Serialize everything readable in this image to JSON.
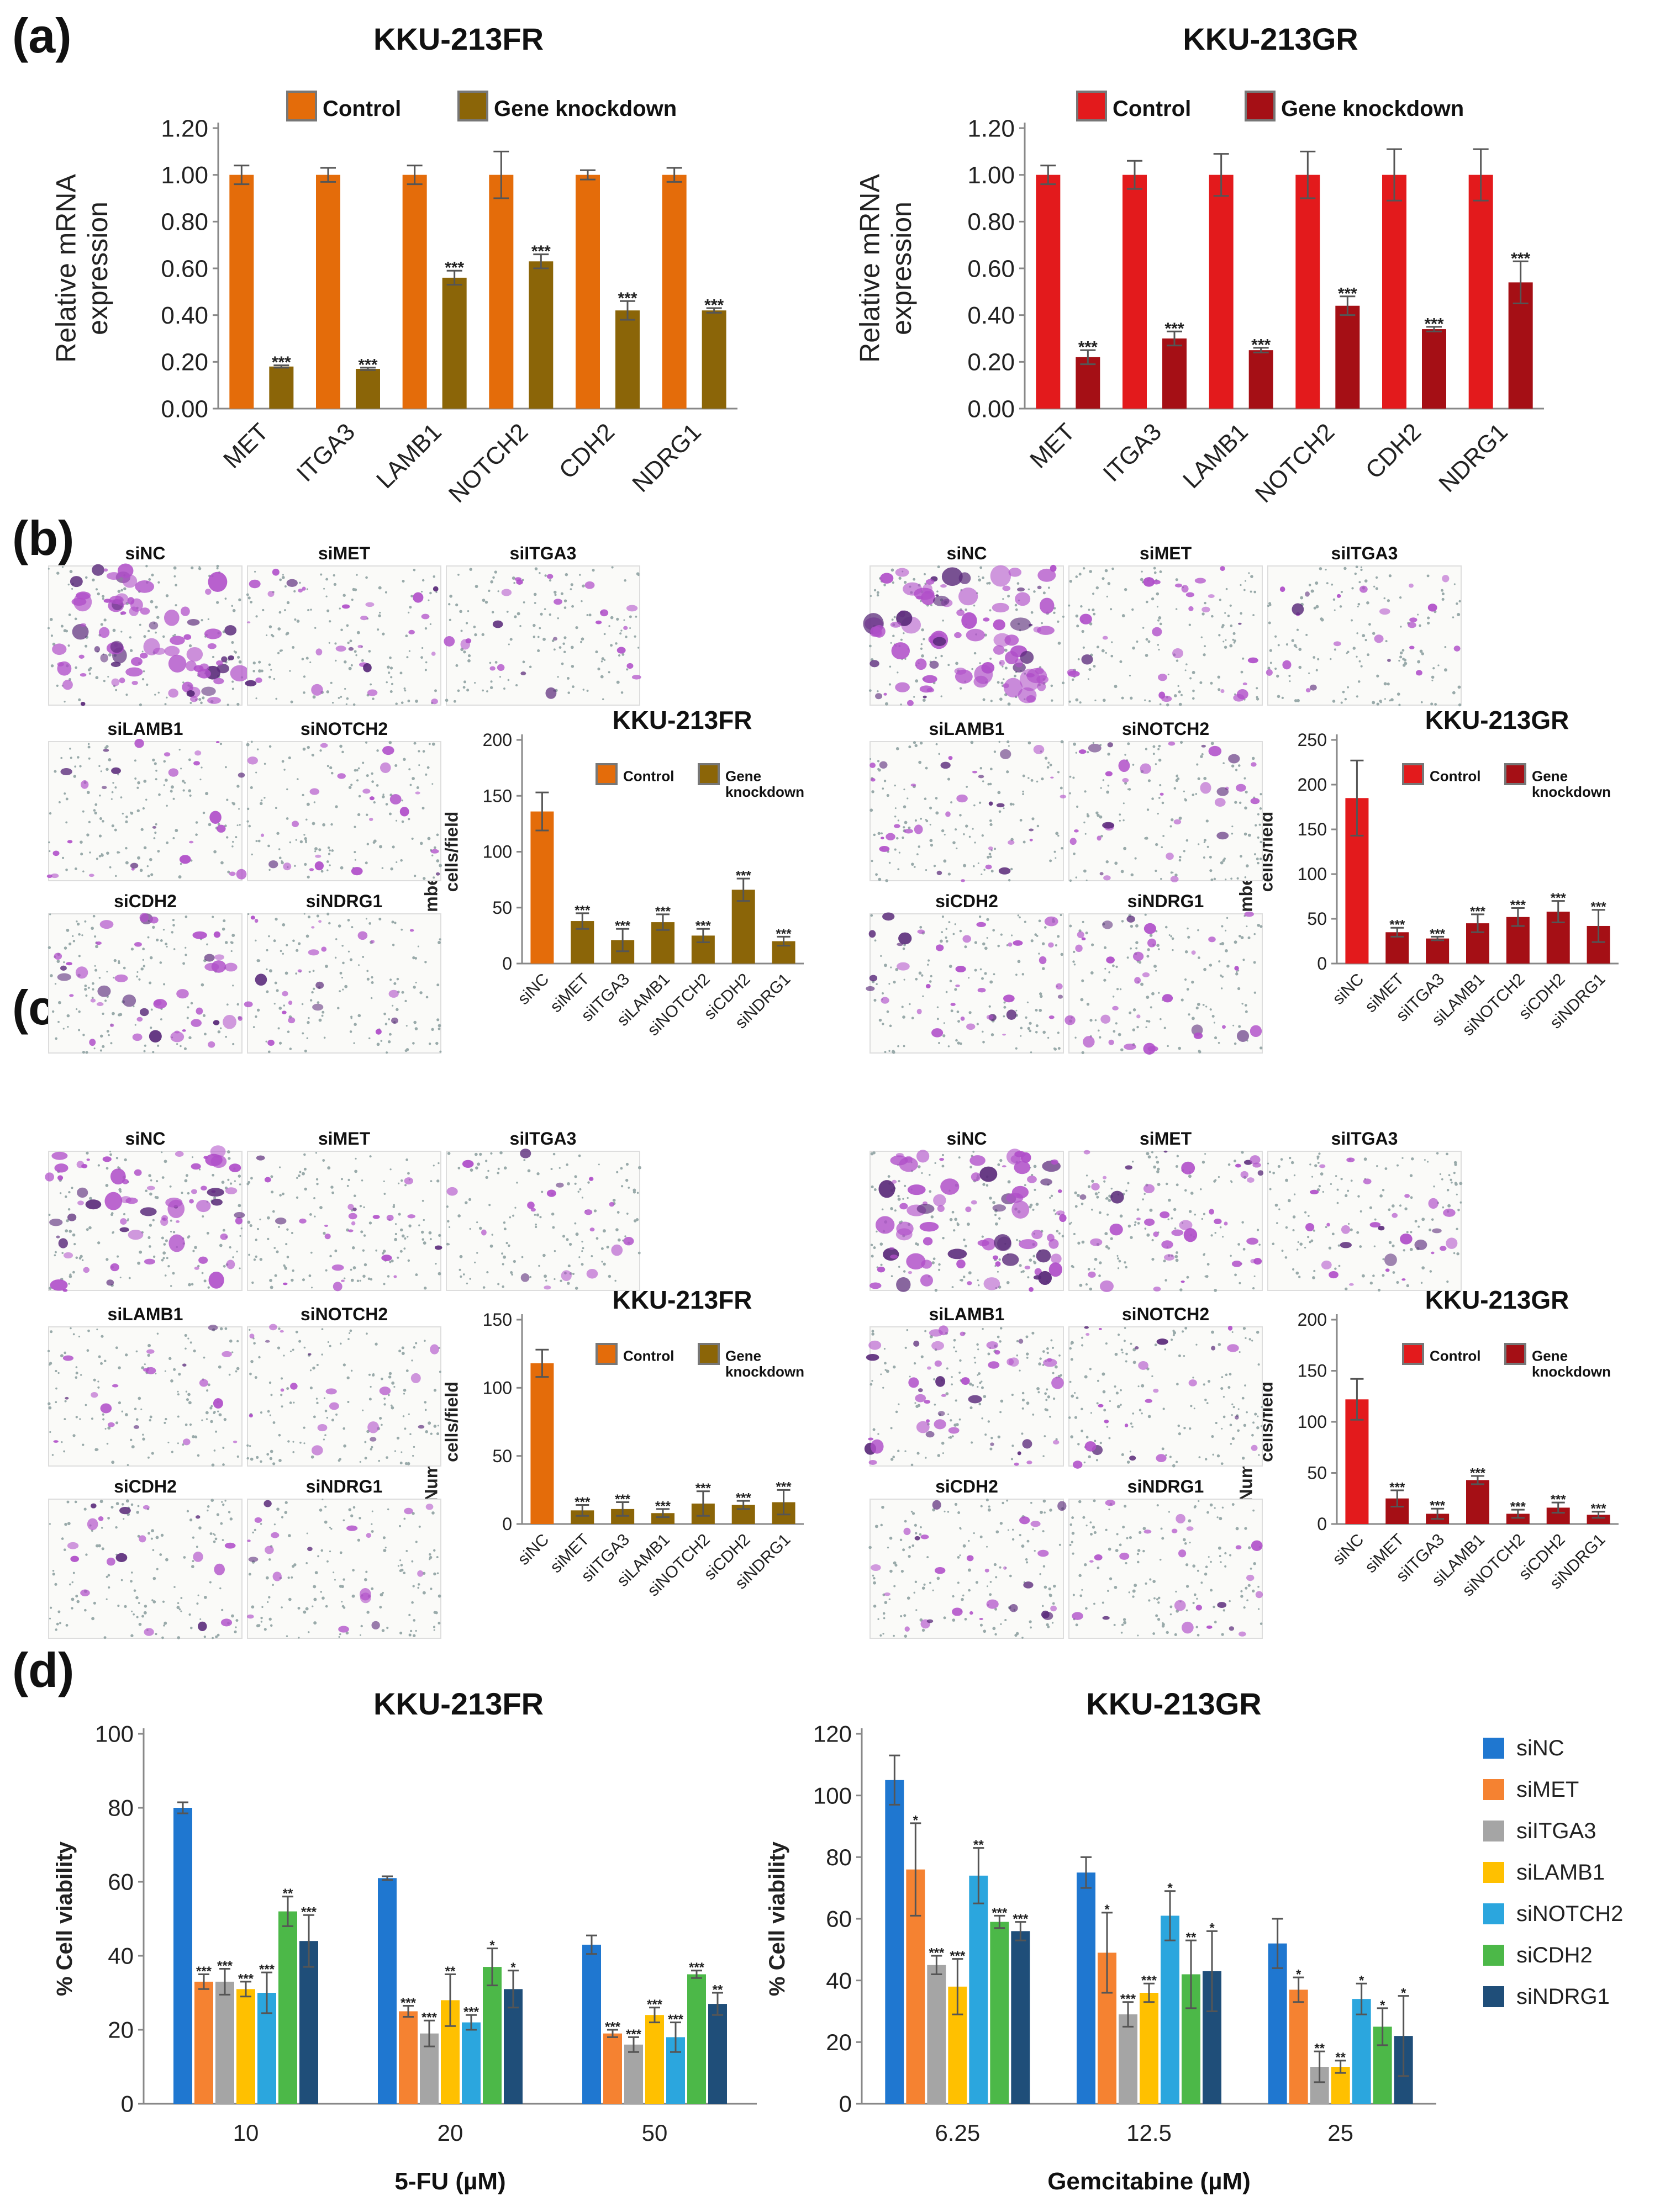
{
  "figure": {
    "panel_labels": [
      "(a)",
      "(b)",
      "(c)",
      "(d)"
    ]
  },
  "colors": {
    "fr_control": "#E46C0A",
    "fr_kd": "#8B6508",
    "gr_control": "#E31A1C",
    "gr_kd": "#A50F15",
    "d_series": [
      "#1F77D0",
      "#F58231",
      "#A5A5A5",
      "#FFC000",
      "#2BA6DE",
      "#4CB848",
      "#1F4E79"
    ]
  },
  "panel_b": {
    "images_fr": [
      {
        "label": "siNC",
        "density": 0.9
      },
      {
        "label": "siMET",
        "density": 0.25
      },
      {
        "label": "siITGA3",
        "density": 0.2
      },
      {
        "label": "siLAMB1",
        "density": 0.25
      },
      {
        "label": "siNOTCH2",
        "density": 0.2
      },
      {
        "label": "siCDH2",
        "density": 0.45
      },
      {
        "label": "siNDRG1",
        "density": 0.2
      }
    ],
    "images_gr": [
      {
        "label": "siNC",
        "density": 1.0
      },
      {
        "label": "siMET",
        "density": 0.25
      },
      {
        "label": "siITGA3",
        "density": 0.2
      },
      {
        "label": "siLAMB1",
        "density": 0.3
      },
      {
        "label": "siNOTCH2",
        "density": 0.3
      },
      {
        "label": "siCDH2",
        "density": 0.35
      },
      {
        "label": "siNDRG1",
        "density": 0.3
      }
    ]
  },
  "panel_c": {
    "images_fr": [
      {
        "label": "siNC",
        "density": 0.7
      },
      {
        "label": "siMET",
        "density": 0.2
      },
      {
        "label": "siITGA3",
        "density": 0.15
      },
      {
        "label": "siLAMB1",
        "density": 0.15
      },
      {
        "label": "siNOTCH2",
        "density": 0.15
      },
      {
        "label": "siCDH2",
        "density": 0.15
      },
      {
        "label": "siNDRG1",
        "density": 0.15
      }
    ],
    "images_gr": [
      {
        "label": "siNC",
        "density": 0.9
      },
      {
        "label": "siMET",
        "density": 0.4
      },
      {
        "label": "siITGA3",
        "density": 0.25
      },
      {
        "label": "siLAMB1",
        "density": 0.45
      },
      {
        "label": "siNOTCH2",
        "density": 0.2
      },
      {
        "label": "siCDH2",
        "density": 0.25
      },
      {
        "label": "siNDRG1",
        "density": 0.2
      }
    ]
  },
  "chart_data": [
    {
      "id": "a_fr",
      "type": "bar",
      "title": "KKU-213FR",
      "ylabel": [
        "Relative mRNA",
        "expression"
      ],
      "ylim": [
        0,
        1.2
      ],
      "yticks": [
        "0.00",
        "0.20",
        "0.40",
        "0.60",
        "0.80",
        "1.00",
        "1.20"
      ],
      "categories": [
        "MET",
        "ITGA3",
        "LAMB1",
        "NOTCH2",
        "CDH2",
        "NDRG1"
      ],
      "legend": [
        "Control",
        "Gene knockdown"
      ],
      "series": [
        {
          "name": "Control",
          "values": [
            1.0,
            1.0,
            1.0,
            1.0,
            1.0,
            1.0
          ],
          "errors": [
            0.04,
            0.03,
            0.04,
            0.1,
            0.02,
            0.03
          ],
          "sig": [
            "",
            "",
            "",
            "",
            "",
            ""
          ]
        },
        {
          "name": "Gene knockdown",
          "values": [
            0.18,
            0.17,
            0.56,
            0.63,
            0.42,
            0.42
          ],
          "errors": [
            0.005,
            0.005,
            0.03,
            0.03,
            0.04,
            0.01
          ],
          "sig": [
            "***",
            "***",
            "***",
            "***",
            "***",
            "***"
          ]
        }
      ]
    },
    {
      "id": "a_gr",
      "type": "bar",
      "title": "KKU-213GR",
      "ylabel": [
        "Relative mRNA",
        "expression"
      ],
      "ylim": [
        0,
        1.2
      ],
      "yticks": [
        "0.00",
        "0.20",
        "0.40",
        "0.60",
        "0.80",
        "1.00",
        "1.20"
      ],
      "categories": [
        "MET",
        "ITGA3",
        "LAMB1",
        "NOTCH2",
        "CDH2",
        "NDRG1"
      ],
      "legend": [
        "Control",
        "Gene knockdown"
      ],
      "series": [
        {
          "name": "Control",
          "values": [
            1.0,
            1.0,
            1.0,
            1.0,
            1.0,
            1.0
          ],
          "errors": [
            0.04,
            0.06,
            0.09,
            0.1,
            0.11,
            0.11
          ],
          "sig": [
            "",
            "",
            "",
            "",
            "",
            ""
          ]
        },
        {
          "name": "Gene knockdown",
          "values": [
            0.22,
            0.3,
            0.25,
            0.44,
            0.34,
            0.54
          ],
          "errors": [
            0.03,
            0.03,
            0.01,
            0.04,
            0.01,
            0.09
          ],
          "sig": [
            "***",
            "***",
            "***",
            "***",
            "***",
            "***"
          ]
        }
      ]
    },
    {
      "id": "b_fr",
      "type": "bar",
      "title": "KKU-213FR",
      "ylabel": [
        "Number of migrated",
        "cells/field"
      ],
      "ylim": [
        0,
        200
      ],
      "yticks": [
        "0",
        "50",
        "100",
        "150",
        "200"
      ],
      "categories": [
        "siNC",
        "siMET",
        "siITGA3",
        "siLAMB1",
        "siNOTCH2",
        "siCDH2",
        "siNDRG1"
      ],
      "legend": [
        "Control",
        "Gene knockdown"
      ],
      "values": [
        136,
        38,
        21,
        37,
        25,
        66,
        20
      ],
      "errors": [
        17,
        7,
        10,
        7,
        6,
        10,
        4
      ],
      "sig": [
        "",
        "***",
        "***",
        "***",
        "***",
        "***",
        "***"
      ]
    },
    {
      "id": "b_gr",
      "type": "bar",
      "title": "KKU-213GR",
      "ylabel": [
        "Number of migrated",
        "cells/field"
      ],
      "ylim": [
        0,
        250
      ],
      "yticks": [
        "0",
        "50",
        "100",
        "150",
        "200",
        "250"
      ],
      "categories": [
        "siNC",
        "siMET",
        "siITGA3",
        "siLAMB1",
        "siNOTCH2",
        "siCDH2",
        "siNDRG1"
      ],
      "legend": [
        "Control",
        "Gene knockdown"
      ],
      "values": [
        185,
        35,
        28,
        45,
        52,
        58,
        42
      ],
      "errors": [
        42,
        5,
        2,
        10,
        10,
        12,
        18
      ],
      "sig": [
        "",
        "***",
        "***",
        "***",
        "***",
        "***",
        "***"
      ]
    },
    {
      "id": "c_fr",
      "type": "bar",
      "title": "KKU-213FR",
      "ylabel": [
        "Number of invaded",
        "cells/field"
      ],
      "ylim": [
        0,
        150
      ],
      "yticks": [
        "0",
        "50",
        "100",
        "150"
      ],
      "categories": [
        "siNC",
        "siMET",
        "siITGA3",
        "siLAMB1",
        "siNOTCH2",
        "siCDH2",
        "siNDRG1"
      ],
      "legend": [
        "Control",
        "Gene knockdown"
      ],
      "values": [
        118,
        10,
        11,
        8,
        15,
        14,
        16
      ],
      "errors": [
        10,
        4,
        5,
        3,
        9,
        3,
        9
      ],
      "sig": [
        "",
        "***",
        "***",
        "***",
        "***",
        "***",
        "***"
      ]
    },
    {
      "id": "c_gr",
      "type": "bar",
      "title": "KKU-213GR",
      "ylabel": [
        "Number of invaded",
        "cells/field"
      ],
      "ylim": [
        0,
        200
      ],
      "yticks": [
        "0",
        "50",
        "100",
        "150",
        "200"
      ],
      "categories": [
        "siNC",
        "siMET",
        "siITGA3",
        "siLAMB1",
        "siNOTCH2",
        "siCDH2",
        "siNDRG1"
      ],
      "legend": [
        "Control",
        "Gene knockdown"
      ],
      "values": [
        122,
        25,
        10,
        43,
        10,
        16,
        9
      ],
      "errors": [
        20,
        8,
        5,
        4,
        4,
        5,
        3
      ],
      "sig": [
        "",
        "***",
        "***",
        "***",
        "***",
        "***",
        "***"
      ]
    },
    {
      "id": "d_fr",
      "type": "bar",
      "title": "KKU-213FR",
      "xlabel": "5-FU (µM)",
      "ylabel": "% Cell viability",
      "ylim": [
        0,
        100
      ],
      "yticks": [
        "0",
        "20",
        "40",
        "60",
        "80",
        "100"
      ],
      "categories": [
        "10",
        "20",
        "50"
      ],
      "series": [
        {
          "name": "siNC",
          "values": [
            80,
            61,
            43
          ],
          "errors": [
            1.5,
            0.5,
            2.5
          ],
          "sig": [
            "",
            "",
            ""
          ]
        },
        {
          "name": "siMET",
          "values": [
            33,
            25,
            19
          ],
          "errors": [
            2,
            1.5,
            1
          ],
          "sig": [
            "***",
            "***",
            "***"
          ]
        },
        {
          "name": "siITGA3",
          "values": [
            33,
            19,
            16
          ],
          "errors": [
            3.5,
            3.5,
            2
          ],
          "sig": [
            "***",
            "***",
            "***"
          ]
        },
        {
          "name": "siLAMB1",
          "values": [
            31,
            28,
            24
          ],
          "errors": [
            2,
            7,
            2
          ],
          "sig": [
            "***",
            "**",
            "***"
          ]
        },
        {
          "name": "siNOTCH2",
          "values": [
            30,
            22,
            18
          ],
          "errors": [
            5.5,
            2,
            4
          ],
          "sig": [
            "***",
            "***",
            "***"
          ]
        },
        {
          "name": "siCDH2",
          "values": [
            52,
            37,
            35
          ],
          "errors": [
            4,
            5,
            1
          ],
          "sig": [
            "**",
            "*",
            "***"
          ]
        },
        {
          "name": "siNDRG1",
          "values": [
            44,
            31,
            27
          ],
          "errors": [
            7,
            5,
            3
          ],
          "sig": [
            "***",
            "*",
            "**"
          ]
        }
      ]
    },
    {
      "id": "d_gr",
      "type": "bar",
      "title": "KKU-213GR",
      "xlabel": "Gemcitabine (µM)",
      "ylabel": "% Cell viability",
      "ylim": [
        0,
        120
      ],
      "yticks": [
        "0",
        "20",
        "40",
        "60",
        "80",
        "100",
        "120"
      ],
      "categories": [
        "6.25",
        "12.5",
        "25"
      ],
      "legend": [
        "siNC",
        "siMET",
        "siITGA3",
        "siLAMB1",
        "siNOTCH2",
        "siCDH2",
        "siNDRG1"
      ],
      "series": [
        {
          "name": "siNC",
          "values": [
            105,
            75,
            52
          ],
          "errors": [
            8,
            5,
            8
          ],
          "sig": [
            "",
            "",
            ""
          ]
        },
        {
          "name": "siMET",
          "values": [
            76,
            49,
            37
          ],
          "errors": [
            15,
            13,
            4
          ],
          "sig": [
            "*",
            "*",
            "*"
          ]
        },
        {
          "name": "siITGA3",
          "values": [
            45,
            29,
            12
          ],
          "errors": [
            3,
            4,
            5
          ],
          "sig": [
            "***",
            "***",
            "**"
          ]
        },
        {
          "name": "siLAMB1",
          "values": [
            38,
            36,
            12
          ],
          "errors": [
            9,
            3,
            2
          ],
          "sig": [
            "***",
            "***",
            "**"
          ]
        },
        {
          "name": "siNOTCH2",
          "values": [
            74,
            61,
            34
          ],
          "errors": [
            9,
            8,
            5
          ],
          "sig": [
            "**",
            "*",
            "*"
          ]
        },
        {
          "name": "siCDH2",
          "values": [
            59,
            42,
            25
          ],
          "errors": [
            2,
            11,
            6
          ],
          "sig": [
            "***",
            "**",
            "*"
          ]
        },
        {
          "name": "siNDRG1",
          "values": [
            56,
            43,
            22
          ],
          "errors": [
            3,
            13,
            13
          ],
          "sig": [
            "***",
            "*",
            "*"
          ]
        }
      ]
    }
  ]
}
